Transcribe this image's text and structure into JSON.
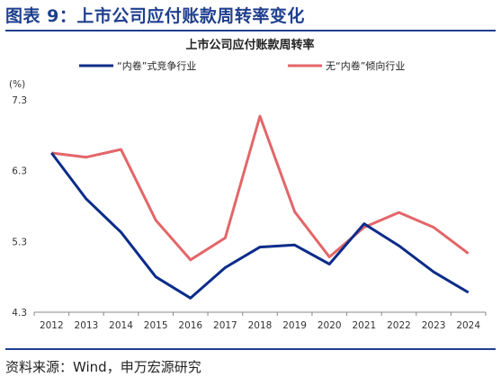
{
  "figure_title": "图表 9：上市公司应付账款周转率变化",
  "source": "资料来源：Wind，申万宏源研究",
  "colors": {
    "title_blue": "#1f3f8f",
    "series1": "#0b2c8a",
    "series2": "#e36669",
    "axis": "#888888"
  },
  "chart_data": {
    "type": "line",
    "title": "上市公司应付账款周转率",
    "ylabel": "(%)",
    "xlabel": "",
    "x": [
      "2012",
      "2013",
      "2014",
      "2015",
      "2016",
      "2017",
      "2018",
      "2019",
      "2020",
      "2021",
      "2022",
      "2023",
      "2024"
    ],
    "ylim": [
      4.3,
      7.3
    ],
    "yticks": [
      "7.3",
      "6.3",
      "5.3",
      "4.3"
    ],
    "grid": false,
    "legend": "top",
    "series": [
      {
        "name": "“内卷”式竞争行业",
        "color": "#0b2c8a",
        "values": [
          6.55,
          5.9,
          5.43,
          4.8,
          4.5,
          4.93,
          5.22,
          5.25,
          4.98,
          5.55,
          5.24,
          4.87,
          4.58
        ]
      },
      {
        "name": "无“内卷”倾向行业",
        "color": "#e36669",
        "values": [
          6.55,
          6.49,
          6.6,
          5.6,
          5.04,
          5.35,
          7.07,
          5.72,
          5.08,
          5.5,
          5.71,
          5.5,
          5.13
        ]
      }
    ]
  }
}
